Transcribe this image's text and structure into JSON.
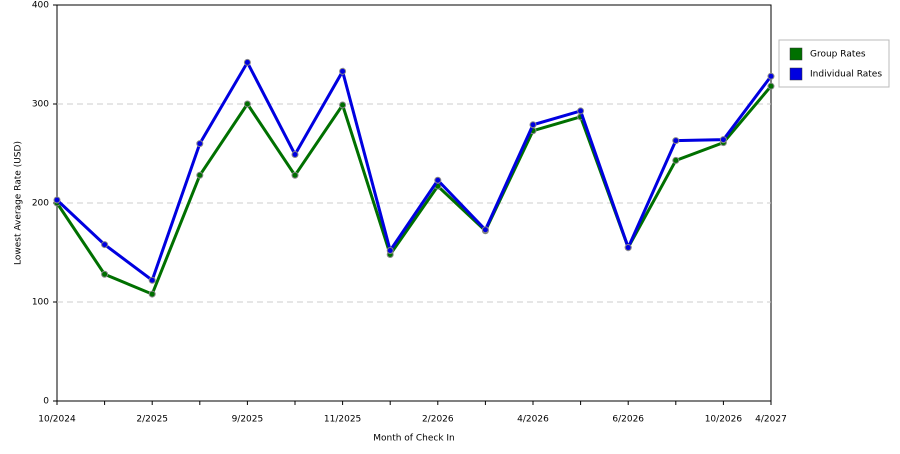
{
  "chart_data": {
    "type": "line",
    "x_label": "Month of Check In",
    "y_label": "Lowest Average Rate (USD)",
    "categories": [
      "10/2024",
      null,
      "2/2025",
      null,
      "9/2025",
      null,
      "11/2025",
      null,
      "2/2026",
      null,
      "4/2026",
      null,
      "6/2026",
      null,
      "10/2026",
      "4/2027"
    ],
    "series": [
      {
        "name": "Group Rates",
        "color": "#007000",
        "values": [
          200,
          128,
          108,
          228,
          300,
          228,
          299,
          148,
          217,
          172,
          273,
          287,
          155,
          243,
          261,
          318
        ]
      },
      {
        "name": "Individual Rates",
        "color": "#0000e0",
        "values": [
          203,
          158,
          122,
          260,
          342,
          249,
          333,
          152,
          223,
          173,
          279,
          293,
          155,
          263,
          264,
          328
        ]
      }
    ],
    "ylim": [
      0,
      400
    ],
    "yticks": [
      0,
      100,
      200,
      300,
      400
    ],
    "grid": true,
    "legend": "right"
  }
}
